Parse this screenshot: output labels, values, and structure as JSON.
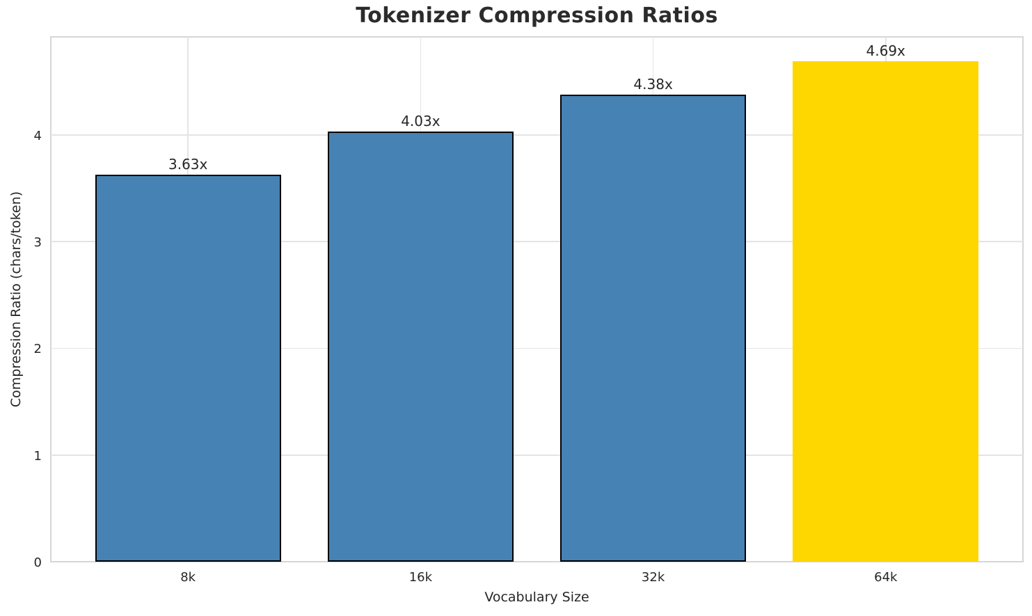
{
  "chart_data": {
    "type": "bar",
    "title": "Tokenizer Compression Ratios",
    "xlabel": "Vocabulary Size",
    "ylabel": "Compression Ratio (chars/token)",
    "categories": [
      "8k",
      "16k",
      "32k",
      "64k"
    ],
    "values": [
      3.63,
      4.03,
      4.38,
      4.69
    ],
    "bar_labels": [
      "3.63x",
      "4.03x",
      "4.38x",
      "4.69x"
    ],
    "bar_colors": [
      "#4682B4",
      "#4682B4",
      "#4682B4",
      "#FFD700"
    ],
    "bar_edge_colors": [
      "#000000",
      "#000000",
      "#000000",
      "none"
    ],
    "bar_edge_width": 2,
    "yticks": [
      0,
      1,
      2,
      3,
      4
    ],
    "ytick_labels": [
      "0",
      "1",
      "2",
      "3",
      "4"
    ],
    "ylim": [
      0,
      4.92
    ],
    "grid": true,
    "legend": "none",
    "highlight_index": 3,
    "colors": {
      "steelblue": "#4682B4",
      "gold": "#FFD700",
      "grid": "#e4e4e4",
      "spine": "#d6d6d6",
      "text": "#262626",
      "background": "#ffffff"
    }
  }
}
